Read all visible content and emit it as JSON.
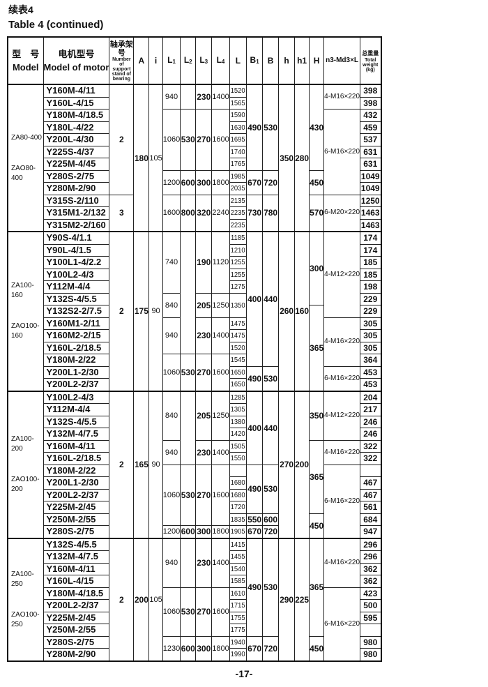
{
  "title_cn": "续表4",
  "title_en": "Table 4 (continued)",
  "page_number": "-17-",
  "headers": {
    "model_cn": "型　号",
    "model_en": "Model",
    "motor_cn": "电机型号",
    "motor_en": "Model of motor",
    "bearing_cn": "轴承架号",
    "bearing_en": "Number of support stand of bearing",
    "A": "A",
    "i": "i",
    "L1": {
      "base": "L",
      "sub": "1"
    },
    "L2": {
      "base": "L",
      "sub": "2"
    },
    "L3": {
      "base": "L",
      "sub": "3"
    },
    "L4": {
      "base": "L",
      "sub": "4"
    },
    "L": "L",
    "B1": {
      "base": "B",
      "sub": "1"
    },
    "B": "B",
    "h": "h",
    "h1": "h1",
    "H": "H",
    "n3": "n3-Md3×L",
    "weight_cn": "总重量",
    "weight_en": "Total weight",
    "weight_unit": "(kg)"
  },
  "groups": [
    {
      "model": [
        "ZA80-400",
        "ZAO80-400"
      ],
      "motors": [
        "Y160M-4/11",
        "Y160L-4/15",
        "Y180M-4/18.5",
        "Y180L-4/22",
        "Y200L-4/30",
        "Y225S-4/37",
        "Y225M-4/45",
        "Y280S-2/75",
        "Y280M-2/90",
        "Y315S-2/110",
        "Y315M1-2/132",
        "Y315M2-2/160"
      ],
      "weights": [
        "398",
        "398",
        "432",
        "459",
        "537",
        "631",
        "631",
        "1049",
        "1049",
        "1250",
        "1463",
        "1463"
      ],
      "spans": {
        "bearing": [
          [
            "2",
            9
          ],
          [
            "3",
            3
          ]
        ],
        "A": [
          [
            "180",
            12
          ]
        ],
        "i": [
          [
            "105",
            12
          ]
        ],
        "L1": [
          [
            "940",
            2
          ],
          [
            "1060",
            5
          ],
          [
            "1200",
            2
          ],
          [
            "1600",
            3
          ]
        ],
        "L2": [
          [
            "",
            2
          ],
          [
            "530",
            5
          ],
          [
            "600",
            2
          ],
          [
            "800",
            3
          ]
        ],
        "L3": [
          [
            "230",
            2
          ],
          [
            "270",
            5
          ],
          [
            "300",
            2
          ],
          [
            "320",
            3
          ]
        ],
        "L4": [
          [
            "1400",
            2
          ],
          [
            "1600",
            5
          ],
          [
            "1800",
            2
          ],
          [
            "2240",
            3
          ]
        ],
        "L": [
          [
            "1520",
            1
          ],
          [
            "1565",
            1
          ],
          [
            "1590",
            1
          ],
          [
            "1630",
            1
          ],
          [
            "1695",
            1
          ],
          [
            "1740",
            1
          ],
          [
            "1765",
            1
          ],
          [
            "1985",
            1
          ],
          [
            "2035",
            1
          ],
          [
            "2135",
            1
          ],
          [
            "2235",
            1
          ],
          [
            "2235",
            1
          ]
        ],
        "B1": [
          [
            "490",
            7
          ],
          [
            "670",
            2
          ],
          [
            "730",
            3
          ]
        ],
        "B": [
          [
            "530",
            7
          ],
          [
            "720",
            2
          ],
          [
            "780",
            3
          ]
        ],
        "h": [
          [
            "350",
            12
          ]
        ],
        "h1": [
          [
            "280",
            12
          ]
        ],
        "H": [
          [
            "430",
            7
          ],
          [
            "450",
            2
          ],
          [
            "570",
            3
          ]
        ],
        "n3": [
          [
            "4-M16×220",
            2
          ],
          [
            "6-M16×220",
            7
          ],
          [
            "6-M20×220",
            3
          ]
        ]
      }
    },
    {
      "model": [
        "ZA100-160",
        "ZAO100-160"
      ],
      "motors": [
        "Y90S-4/1.1",
        "Y90L-4/1.5",
        "Y100L1-4/2.2",
        "Y100L2-4/3",
        "Y112M-4/4",
        "Y132S-4/5.5",
        "Y132S2-2/7.5",
        "Y160M1-2/11",
        "Y160M2-2/15",
        "Y160L-2/18.5",
        "Y180M-2/22",
        "Y200L1-2/30",
        "Y200L2-2/37"
      ],
      "weights": [
        "174",
        "174",
        "185",
        "185",
        "198",
        "229",
        "229",
        "305",
        "305",
        "305",
        "364",
        "453",
        "453"
      ],
      "spans": {
        "bearing": [
          [
            "2",
            13
          ]
        ],
        "A": [
          [
            "175",
            13
          ]
        ],
        "i": [
          [
            "90",
            13
          ]
        ],
        "L1": [
          [
            "740",
            5
          ],
          [
            "840",
            2
          ],
          [
            "940",
            3
          ],
          [
            "1060",
            3
          ]
        ],
        "L2": [
          [
            "",
            10
          ],
          [
            "530",
            3
          ]
        ],
        "L3": [
          [
            "190",
            5
          ],
          [
            "205",
            2
          ],
          [
            "230",
            3
          ],
          [
            "270",
            3
          ]
        ],
        "L4": [
          [
            "1120",
            5
          ],
          [
            "1250",
            2
          ],
          [
            "1400",
            3
          ],
          [
            "1600",
            3
          ]
        ],
        "L": [
          [
            "1185",
            1
          ],
          [
            "1210",
            1
          ],
          [
            "1255",
            1
          ],
          [
            "1255",
            1
          ],
          [
            "1275",
            1
          ],
          [
            "1350",
            2
          ],
          [
            "1475",
            1
          ],
          [
            "1475",
            1
          ],
          [
            "1520",
            1
          ],
          [
            "1545",
            1
          ],
          [
            "1650",
            1
          ],
          [
            "1650",
            1
          ]
        ],
        "B1": [
          [
            "400",
            11
          ],
          [
            "490",
            2
          ]
        ],
        "B": [
          [
            "440",
            11
          ],
          [
            "530",
            2
          ]
        ],
        "h": [
          [
            "260",
            13
          ]
        ],
        "h1": [
          [
            "160",
            13
          ]
        ],
        "H": [
          [
            "300",
            6
          ],
          [
            "365",
            7
          ]
        ],
        "n3": [
          [
            "4-M12×220",
            7
          ],
          [
            "4-M16×220",
            4
          ],
          [
            "6-M16×220",
            2
          ]
        ]
      }
    },
    {
      "model": [
        "ZA100-200",
        "ZAO100-200"
      ],
      "motors": [
        "Y100L2-4/3",
        "Y112M-4/4",
        "Y132S-4/5.5",
        "Y132M-4/7.5",
        "Y160M-4/11",
        "Y160L-2/18.5",
        "Y180M-2/22",
        "Y200L1-2/30",
        "Y200L2-2/37",
        "Y225M-2/45",
        "Y250M-2/55",
        "Y280S-2/75"
      ],
      "weights": [
        "204",
        "217",
        "246",
        "246",
        "322",
        "322",
        "",
        "467",
        "467",
        "561",
        "684",
        "947"
      ],
      "spans": {
        "bearing": [
          [
            "2",
            12
          ]
        ],
        "A": [
          [
            "165",
            12
          ]
        ],
        "i": [
          [
            "90",
            12
          ]
        ],
        "L1": [
          [
            "840",
            4
          ],
          [
            "940",
            2
          ],
          [
            "1060",
            5
          ],
          [
            "1200",
            1
          ]
        ],
        "L2": [
          [
            "",
            6
          ],
          [
            "530",
            5
          ],
          [
            "600",
            1
          ]
        ],
        "L3": [
          [
            "205",
            4
          ],
          [
            "230",
            2
          ],
          [
            "270",
            5
          ],
          [
            "300",
            1
          ]
        ],
        "L4": [
          [
            "1250",
            4
          ],
          [
            "1400",
            2
          ],
          [
            "1600",
            5
          ],
          [
            "1800",
            1
          ]
        ],
        "L": [
          [
            "1285",
            1
          ],
          [
            "1305",
            1
          ],
          [
            "1380",
            1
          ],
          [
            "1420",
            1
          ],
          [
            "1505",
            1
          ],
          [
            "1550",
            1
          ],
          [
            "",
            1
          ],
          [
            "1680",
            1
          ],
          [
            "1680",
            1
          ],
          [
            "1720",
            1
          ],
          [
            "1835",
            1
          ],
          [
            "1905",
            1
          ]
        ],
        "B1": [
          [
            "400",
            6
          ],
          [
            "490",
            4
          ],
          [
            "550",
            1
          ],
          [
            "670",
            1
          ]
        ],
        "B": [
          [
            "440",
            6
          ],
          [
            "530",
            4
          ],
          [
            "600",
            1
          ],
          [
            "720",
            1
          ]
        ],
        "h": [
          [
            "270",
            12
          ]
        ],
        "h1": [
          [
            "200",
            12
          ]
        ],
        "H": [
          [
            "350",
            4
          ],
          [
            "365",
            6
          ],
          [
            "450",
            2
          ]
        ],
        "n3": [
          [
            "4-M12×220",
            4
          ],
          [
            "4-M16×220",
            2
          ],
          [
            "6-M16×220",
            6
          ]
        ]
      }
    },
    {
      "model": [
        "ZA100-250",
        "ZAO100-250"
      ],
      "motors": [
        "Y132S-4/5.5",
        "Y132M-4/7.5",
        "Y160M-4/11",
        "Y160L-4/15",
        "Y180M-4/18.5",
        "Y200L2-2/37",
        "Y225M-2/45",
        "Y250M-2/55",
        "Y280S-2/75",
        "Y280M-2/90"
      ],
      "weights": [
        "296",
        "296",
        "362",
        "362",
        "423",
        "500",
        "595",
        "",
        "980",
        "980"
      ],
      "spans": {
        "bearing": [
          [
            "2",
            10
          ]
        ],
        "A": [
          [
            "200",
            10
          ]
        ],
        "i": [
          [
            "105",
            10
          ]
        ],
        "L1": [
          [
            "940",
            4
          ],
          [
            "1060",
            4
          ],
          [
            "1230",
            2
          ]
        ],
        "L2": [
          [
            "",
            4
          ],
          [
            "530",
            4
          ],
          [
            "600",
            2
          ]
        ],
        "L3": [
          [
            "230",
            4
          ],
          [
            "270",
            4
          ],
          [
            "300",
            2
          ]
        ],
        "L4": [
          [
            "1400",
            4
          ],
          [
            "1600",
            4
          ],
          [
            "1800",
            2
          ]
        ],
        "L": [
          [
            "1415",
            1
          ],
          [
            "1455",
            1
          ],
          [
            "1540",
            1
          ],
          [
            "1585",
            1
          ],
          [
            "1610",
            1
          ],
          [
            "1715",
            1
          ],
          [
            "1755",
            1
          ],
          [
            "1775",
            1
          ],
          [
            "1940",
            1
          ],
          [
            "1990",
            1
          ]
        ],
        "B1": [
          [
            "490",
            8
          ],
          [
            "670",
            2
          ]
        ],
        "B": [
          [
            "530",
            8
          ],
          [
            "720",
            2
          ]
        ],
        "h": [
          [
            "290",
            10
          ]
        ],
        "h1": [
          [
            "225",
            10
          ]
        ],
        "H": [
          [
            "365",
            8
          ],
          [
            "450",
            2
          ]
        ],
        "n3": [
          [
            "4-M16×220",
            4
          ],
          [
            "6-M16×220",
            6
          ]
        ]
      }
    }
  ]
}
